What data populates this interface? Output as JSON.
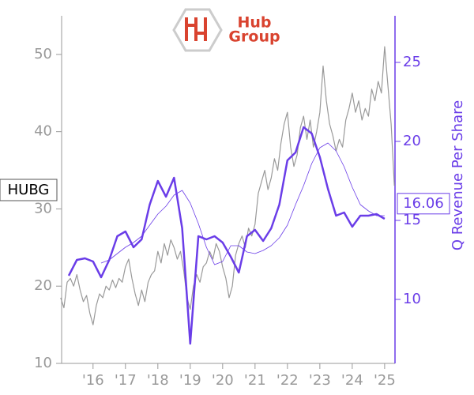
{
  "chart_data": {
    "type": "line",
    "ticker": "HUBG",
    "logo_text": [
      "Hub",
      "Group"
    ],
    "y2label": "Q Revenue Per Share",
    "current_value": 16.06,
    "xlim": [
      2015.03,
      2025.32
    ],
    "xticks": [
      {
        "value": 2016,
        "label": "'16"
      },
      {
        "value": 2017,
        "label": "'17"
      },
      {
        "value": 2018,
        "label": "'18"
      },
      {
        "value": 2019,
        "label": "'19"
      },
      {
        "value": 2020,
        "label": "'20"
      },
      {
        "value": 2021,
        "label": "'21"
      },
      {
        "value": 2022,
        "label": "'22"
      },
      {
        "value": 2023,
        "label": "'23"
      },
      {
        "value": 2024,
        "label": "'24"
      },
      {
        "value": 2025,
        "label": "'25"
      }
    ],
    "ylim": [
      10,
      55
    ],
    "yticks": [
      10,
      20,
      30,
      40,
      50
    ],
    "y2lim": [
      5.95,
      27.95
    ],
    "y2ticks": [
      10,
      15,
      20,
      25
    ],
    "series": [
      {
        "color": "#999999",
        "width": 1.2,
        "x": [
          2015.0,
          2015.1,
          2015.2,
          2015.3,
          2015.4,
          2015.5,
          2015.6,
          2015.7,
          2015.8,
          2015.9,
          2016.0,
          2016.1,
          2016.2,
          2016.3,
          2016.4,
          2016.5,
          2016.6,
          2016.7,
          2016.8,
          2016.9,
          2017.0,
          2017.1,
          2017.2,
          2017.3,
          2017.4,
          2017.5,
          2017.6,
          2017.7,
          2017.8,
          2017.9,
          2018.0,
          2018.1,
          2018.2,
          2018.3,
          2018.4,
          2018.5,
          2018.6,
          2018.7,
          2018.8,
          2018.9,
          2019.0,
          2019.1,
          2019.2,
          2019.3,
          2019.4,
          2019.5,
          2019.6,
          2019.7,
          2019.8,
          2019.9,
          2020.0,
          2020.1,
          2020.2,
          2020.3,
          2020.4,
          2020.5,
          2020.6,
          2020.7,
          2020.8,
          2020.9,
          2021.0,
          2021.1,
          2021.2,
          2021.3,
          2021.4,
          2021.5,
          2021.6,
          2021.7,
          2021.8,
          2021.9,
          2022.0,
          2022.1,
          2022.2,
          2022.3,
          2022.4,
          2022.5,
          2022.6,
          2022.7,
          2022.8,
          2022.9,
          2023.0,
          2023.1,
          2023.2,
          2023.3,
          2023.4,
          2023.5,
          2023.6,
          2023.7,
          2023.8,
          2023.9,
          2024.0,
          2024.1,
          2024.2,
          2024.3,
          2024.4,
          2024.5,
          2024.6,
          2024.7,
          2024.8,
          2024.9,
          2025.0,
          2025.1,
          2025.2,
          2025.3
        ],
        "values": [
          18.5,
          17.2,
          20.5,
          21.0,
          20.0,
          21.5,
          19.5,
          18.0,
          18.8,
          16.5,
          15.0,
          17.5,
          19.0,
          18.5,
          20.0,
          19.5,
          20.8,
          19.8,
          21.0,
          20.5,
          22.5,
          23.5,
          21.0,
          19.0,
          17.5,
          19.5,
          18.0,
          20.5,
          21.5,
          22.0,
          24.5,
          23.0,
          25.5,
          24.0,
          26.0,
          25.0,
          23.5,
          24.5,
          22.0,
          18.5,
          17.0,
          20.0,
          21.5,
          20.5,
          22.5,
          23.0,
          24.5,
          23.5,
          25.5,
          24.5,
          22.5,
          21.0,
          18.5,
          20.0,
          24.0,
          25.5,
          26.5,
          25.0,
          27.5,
          26.5,
          28.0,
          32.0,
          33.5,
          35.0,
          32.5,
          34.0,
          36.5,
          35.0,
          38.5,
          41.0,
          42.5,
          38.0,
          35.5,
          37.0,
          40.5,
          42.0,
          39.0,
          41.5,
          38.0,
          40.0,
          42.5,
          48.5,
          44.0,
          41.0,
          39.5,
          37.5,
          39.0,
          38.0,
          41.5,
          43.0,
          45.0,
          42.5,
          44.0,
          41.5,
          43.0,
          42.0,
          45.5,
          44.0,
          46.5,
          45.0,
          51.0,
          46.0,
          41.0,
          33.0
        ]
      },
      {
        "color": "#6a3de8",
        "width": 2.5,
        "axis": "y2",
        "x": [
          2015.25,
          2015.5,
          2015.75,
          2016.0,
          2016.25,
          2016.5,
          2016.75,
          2017.0,
          2017.25,
          2017.5,
          2017.75,
          2018.0,
          2018.25,
          2018.5,
          2018.75,
          2019.0,
          2019.25,
          2019.5,
          2019.75,
          2020.0,
          2020.25,
          2020.5,
          2020.75,
          2021.0,
          2021.25,
          2021.5,
          2021.75,
          2022.0,
          2022.25,
          2022.5,
          2022.75,
          2023.0,
          2023.25,
          2023.5,
          2023.75,
          2024.0,
          2024.25,
          2024.5,
          2024.75,
          2025.0
        ],
        "values": [
          11.5,
          12.5,
          12.6,
          12.4,
          11.4,
          12.5,
          14.0,
          14.3,
          13.3,
          13.8,
          16.0,
          17.5,
          16.5,
          17.7,
          14.5,
          7.2,
          14.0,
          13.8,
          14.0,
          13.6,
          12.7,
          11.7,
          14.0,
          14.4,
          13.7,
          14.5,
          16.0,
          18.8,
          19.3,
          20.9,
          20.5,
          19.0,
          17.0,
          15.3,
          15.5,
          14.6,
          15.3,
          15.3,
          15.4,
          15.1
        ]
      },
      {
        "color": "#6a3de8",
        "width": 0.8,
        "axis": "y2",
        "x": [
          2016.25,
          2016.5,
          2016.75,
          2017.0,
          2017.25,
          2017.5,
          2017.75,
          2018.0,
          2018.25,
          2018.5,
          2018.75,
          2019.0,
          2019.25,
          2019.5,
          2019.75,
          2020.0,
          2020.25,
          2020.5,
          2020.75,
          2021.0,
          2021.25,
          2021.5,
          2021.75,
          2022.0,
          2022.25,
          2022.5,
          2022.75,
          2023.0,
          2023.25,
          2023.5,
          2023.75,
          2024.0,
          2024.25,
          2024.5,
          2024.75,
          2025.0
        ],
        "values": [
          12.3,
          12.5,
          12.9,
          13.3,
          13.6,
          14.0,
          14.7,
          15.4,
          15.9,
          16.6,
          16.9,
          16.1,
          14.8,
          13.3,
          12.2,
          12.4,
          13.4,
          13.4,
          13.0,
          12.9,
          13.1,
          13.4,
          13.9,
          14.7,
          16.0,
          17.2,
          18.6,
          19.6,
          19.9,
          19.4,
          18.4,
          17.1,
          16.0,
          15.6,
          15.3,
          15.3
        ]
      }
    ]
  }
}
